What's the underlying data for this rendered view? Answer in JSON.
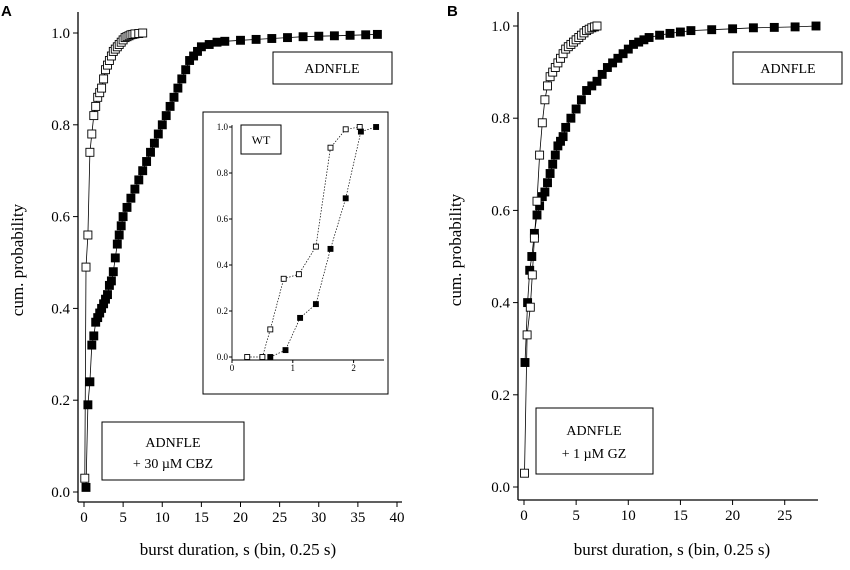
{
  "panel_labels": [
    "A",
    "B"
  ],
  "chart_data": [
    {
      "type": "scatter",
      "panel": "A",
      "xlabel": "burst duration, s (bin, 0.25 s)",
      "ylabel": "cum. probability",
      "xlim": [
        0,
        40
      ],
      "ylim": [
        0,
        1
      ],
      "xticks": [
        "0",
        "5",
        "10",
        "15",
        "20",
        "25",
        "30",
        "35",
        "40"
      ],
      "yticks": [
        "0.0",
        "0.2",
        "0.4",
        "0.6",
        "0.8",
        "1.0"
      ],
      "annotations": {
        "top_box": "ADNFLE",
        "bottom_box_line1": "ADNFLE",
        "bottom_box_line2": "+ 30 µM CBZ"
      },
      "series": [
        {
          "marker": "filled-square",
          "x": [
            0.25,
            0.5,
            0.75,
            1.0,
            1.25,
            1.5,
            1.75,
            2.0,
            2.25,
            2.5,
            2.75,
            3.0,
            3.25,
            3.5,
            3.75,
            4.0,
            4.25,
            4.5,
            4.75,
            5.0,
            5.5,
            6.0,
            6.5,
            7.0,
            7.5,
            8.0,
            8.5,
            9.0,
            9.5,
            10.0,
            10.5,
            11.0,
            11.5,
            12.0,
            12.5,
            13.0,
            13.5,
            14.0,
            14.5,
            15.0,
            16.0,
            17.0,
            18.0,
            20.0,
            22.0,
            24.0,
            26.0,
            28.0,
            30.0,
            32.0,
            34.0,
            36.0,
            37.5
          ],
          "y": [
            0.01,
            0.19,
            0.24,
            0.32,
            0.34,
            0.37,
            0.38,
            0.39,
            0.4,
            0.41,
            0.42,
            0.43,
            0.45,
            0.46,
            0.48,
            0.51,
            0.54,
            0.56,
            0.58,
            0.6,
            0.62,
            0.64,
            0.66,
            0.68,
            0.7,
            0.72,
            0.74,
            0.76,
            0.78,
            0.8,
            0.82,
            0.84,
            0.86,
            0.88,
            0.9,
            0.92,
            0.94,
            0.95,
            0.96,
            0.97,
            0.975,
            0.98,
            0.982,
            0.984,
            0.986,
            0.988,
            0.99,
            0.992,
            0.993,
            0.994,
            0.995,
            0.996,
            0.997
          ]
        },
        {
          "marker": "open-square",
          "x": [
            0.1,
            0.25,
            0.5,
            0.75,
            1.0,
            1.25,
            1.5,
            1.75,
            2.0,
            2.25,
            2.5,
            2.75,
            3.0,
            3.25,
            3.5,
            3.75,
            4.0,
            4.25,
            4.5,
            4.75,
            5.0,
            5.25,
            5.5,
            5.75,
            6.0,
            6.25,
            6.5,
            7.0,
            7.5
          ],
          "y": [
            0.03,
            0.49,
            0.56,
            0.74,
            0.78,
            0.82,
            0.84,
            0.86,
            0.87,
            0.88,
            0.9,
            0.92,
            0.93,
            0.94,
            0.95,
            0.96,
            0.965,
            0.97,
            0.975,
            0.98,
            0.985,
            0.99,
            0.992,
            0.994,
            0.996,
            0.997,
            0.998,
            0.999,
            1.0
          ]
        }
      ]
    },
    {
      "type": "line",
      "panel": "A-inset",
      "xlim": [
        0,
        2.5
      ],
      "ylim": [
        0,
        1
      ],
      "xticks": [
        "0",
        "1",
        "2"
      ],
      "yticks": [
        "0.0",
        "0.2",
        "0.4",
        "0.6",
        "0.8",
        "1.0"
      ],
      "annotations": {
        "box": "WT"
      },
      "series": [
        {
          "marker": "open-square",
          "x": [
            0.25,
            0.5,
            0.63,
            0.85,
            1.1,
            1.38,
            1.62,
            1.87,
            2.1
          ],
          "y": [
            0.0,
            0.0,
            0.12,
            0.34,
            0.36,
            0.48,
            0.91,
            0.99,
            1.0
          ]
        },
        {
          "marker": "filled-square",
          "x": [
            0.63,
            0.88,
            1.12,
            1.38,
            1.62,
            1.87,
            2.12,
            2.37
          ],
          "y": [
            0.0,
            0.03,
            0.17,
            0.23,
            0.47,
            0.69,
            0.98,
            1.0
          ]
        }
      ]
    },
    {
      "type": "scatter",
      "panel": "B",
      "xlabel": "burst duration, s (bin, 0.25 s)",
      "ylabel": "cum. probability",
      "xlim": [
        0,
        28
      ],
      "ylim": [
        0,
        1
      ],
      "xticks": [
        "0",
        "5",
        "10",
        "15",
        "20",
        "25"
      ],
      "yticks": [
        "0.0",
        "0.2",
        "0.4",
        "0.6",
        "0.8",
        "1.0"
      ],
      "annotations": {
        "top_box": "ADNFLE",
        "bottom_box_line1": "ADNFLE",
        "bottom_box_line2": "+ 1 µM GZ"
      },
      "series": [
        {
          "marker": "filled-square",
          "x": [
            0.1,
            0.35,
            0.55,
            0.75,
            1.0,
            1.25,
            1.5,
            1.75,
            2.0,
            2.25,
            2.5,
            2.75,
            3.0,
            3.25,
            3.5,
            3.75,
            4.0,
            4.5,
            5.0,
            5.5,
            6.0,
            6.5,
            7.0,
            7.5,
            8.0,
            8.5,
            9.0,
            9.5,
            10.0,
            10.5,
            11.0,
            11.5,
            12.0,
            13.0,
            14.0,
            15.0,
            16.0,
            18.0,
            20.0,
            22.0,
            24.0,
            26.0,
            28.0
          ],
          "y": [
            0.27,
            0.4,
            0.47,
            0.5,
            0.55,
            0.59,
            0.61,
            0.63,
            0.64,
            0.66,
            0.68,
            0.7,
            0.72,
            0.74,
            0.75,
            0.76,
            0.78,
            0.8,
            0.82,
            0.84,
            0.86,
            0.87,
            0.88,
            0.895,
            0.91,
            0.92,
            0.93,
            0.94,
            0.95,
            0.96,
            0.965,
            0.97,
            0.975,
            0.98,
            0.984,
            0.987,
            0.99,
            0.992,
            0.994,
            0.996,
            0.997,
            0.998,
            1.0
          ]
        },
        {
          "marker": "open-square",
          "x": [
            0.05,
            0.3,
            0.6,
            0.8,
            1.0,
            1.25,
            1.5,
            1.75,
            2.0,
            2.25,
            2.5,
            2.75,
            3.0,
            3.25,
            3.5,
            3.75,
            4.0,
            4.25,
            4.5,
            4.75,
            5.0,
            5.25,
            5.5,
            5.75,
            6.0,
            6.25,
            6.5,
            6.75,
            7.0
          ],
          "y": [
            0.03,
            0.33,
            0.39,
            0.46,
            0.54,
            0.62,
            0.72,
            0.79,
            0.84,
            0.87,
            0.89,
            0.9,
            0.91,
            0.92,
            0.93,
            0.94,
            0.95,
            0.955,
            0.96,
            0.965,
            0.97,
            0.975,
            0.98,
            0.985,
            0.99,
            0.993,
            0.996,
            0.998,
            1.0
          ]
        }
      ]
    }
  ]
}
